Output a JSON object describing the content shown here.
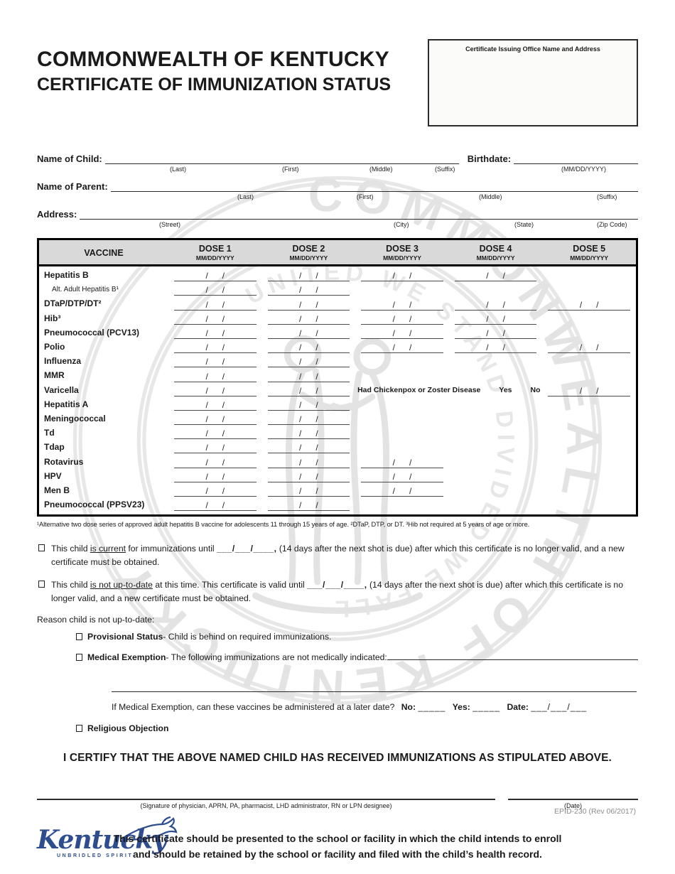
{
  "header": {
    "title_line1": "COMMONWEALTH OF KENTUCKY",
    "title_line2": "CERTIFICATE OF IMMUNIZATION STATUS",
    "issuing_office_label": "Certificate Issuing Office Name and Address"
  },
  "fields": {
    "child_label": "Name of Child:",
    "child_sublabels": [
      "(Last)",
      "(First)",
      "(Middle)",
      "(Suffix)"
    ],
    "birthdate_label": "Birthdate:",
    "birthdate_sublabel": "(MM/DD/YYYY)",
    "parent_label": "Name of Parent:",
    "parent_sublabels": [
      "(Last)",
      "(First)",
      "(Middle)",
      "(Suffix)"
    ],
    "address_label": "Address:",
    "address_sublabels": [
      "(Street)",
      "(City)",
      "(State)",
      "(Zip Code)"
    ]
  },
  "vaccine_table": {
    "vaccine_header": "VACCINE",
    "dose_headers": [
      "DOSE 1",
      "DOSE 2",
      "DOSE 3",
      "DOSE 4",
      "DOSE 5"
    ],
    "date_format": "MM/DD/YYYY",
    "dose_slashes": "      /      /      ",
    "rows": [
      {
        "name": "Hepatitis B",
        "doses": [
          1,
          1,
          1,
          1,
          0
        ]
      },
      {
        "name": "Alt. Adult Hepatitis B¹",
        "small": true,
        "doses": [
          1,
          1,
          0,
          0,
          0
        ]
      },
      {
        "name": "DTaP/DTP/DT²",
        "doses": [
          1,
          1,
          1,
          1,
          1
        ]
      },
      {
        "name": "Hib³",
        "doses": [
          1,
          1,
          1,
          1,
          0
        ]
      },
      {
        "name": "Pneumococcal (PCV13)",
        "doses": [
          1,
          1,
          1,
          1,
          0
        ]
      },
      {
        "name": "Polio",
        "doses": [
          1,
          1,
          1,
          1,
          1
        ]
      },
      {
        "name": "Influenza",
        "doses": [
          1,
          1,
          0,
          0,
          0
        ]
      },
      {
        "name": "MMR",
        "doses": [
          1,
          1,
          0,
          0,
          0
        ]
      },
      {
        "name": "Varicella",
        "doses": [
          1,
          1,
          0,
          0,
          0
        ],
        "note": "Had Chickenpox or Zoster Disease",
        "note_options": [
          "Yes",
          "No"
        ],
        "note_date_line": true
      },
      {
        "name": "Hepatitis A",
        "doses": [
          1,
          1,
          0,
          0,
          0
        ]
      },
      {
        "name": "Meningococcal",
        "doses": [
          1,
          1,
          0,
          0,
          0
        ]
      },
      {
        "name": "Td",
        "doses": [
          1,
          1,
          0,
          0,
          0
        ]
      },
      {
        "name": "Tdap",
        "doses": [
          1,
          1,
          0,
          0,
          0
        ]
      },
      {
        "name": "Rotavirus",
        "doses": [
          1,
          1,
          1,
          0,
          0
        ]
      },
      {
        "name": "HPV",
        "doses": [
          1,
          1,
          1,
          0,
          0
        ]
      },
      {
        "name": "Men B",
        "doses": [
          1,
          1,
          1,
          0,
          0
        ]
      },
      {
        "name": "Pneumococcal (PPSV23)",
        "doses": [
          1,
          1,
          0,
          0,
          0
        ]
      }
    ],
    "footnote": "¹Alternative two dose series of approved adult hepatitis B vaccine for adolescents 11 through 15 years of age.  ²DTaP, DTP, or DT.  ³Hib not required at 5 years of age or more."
  },
  "status": {
    "current": {
      "pre": "This child ",
      "underlined": "is current",
      "mid": " for immunizations until  ",
      "date_blank": "___/___/____,",
      "post": " (14 days after the next shot is due) after which this certificate is no longer valid, and a new certificate must be obtained."
    },
    "not_up_to_date": {
      "pre": "This child ",
      "underlined": "is not up-to-date",
      "mid": " at this time.  This certificate is valid until  ",
      "date_blank": "___/___/____,",
      "post": " (14 days after the next shot is due) after which this certificate is no longer valid, and a new certificate must be obtained."
    },
    "reason_label": "Reason child is not up-to-date:",
    "provisional_label": "Provisional Status",
    "provisional_desc": " - Child is behind on required immunizations.",
    "medical_label": "Medical Exemption",
    "medical_desc": " - The following immunizations are not medically indicated:",
    "later_date_question": "If Medical Exemption, can these vaccines be administered at a later date?",
    "no_label": "No:",
    "no_blank": "_____",
    "yes_label": "Yes:",
    "yes_blank": "_____",
    "date_label": "Date:",
    "date_blank": "___/___/___",
    "religious_label": "Religious Objection"
  },
  "certify_statement": "I CERTIFY THAT THE ABOVE NAMED CHILD HAS RECEIVED IMMUNIZATIONS AS STIPULATED ABOVE.",
  "signature": {
    "signature_sublabel": "(Signature of physician, APRN, PA, pharmacist, LHD administrator, RN or LPN designee)",
    "date_sublabel": "(Date)"
  },
  "closing": [
    "This certificate should be presented to the school or facility in which the child intends to enroll",
    "and should be retained by the school or facility and filed with the child’s health record."
  ],
  "watermark": {
    "outer_text": "COMMONWEALTH OF KENTUCKY",
    "inner_text": "UNITED WE STAND  DIVIDED WE FALL"
  },
  "footer": {
    "logo_text": "Kentucky",
    "logo_tagline": "UNBRIDLED SPIRIT",
    "form_number": "EPID-230 (Rev 06/2017)"
  },
  "colors": {
    "logo_blue": "#2e4d8e",
    "table_header_gray": "#d9d9d9",
    "form_number_gray": "#8c8c8c",
    "watermark_gray": "#e9e9e9"
  }
}
